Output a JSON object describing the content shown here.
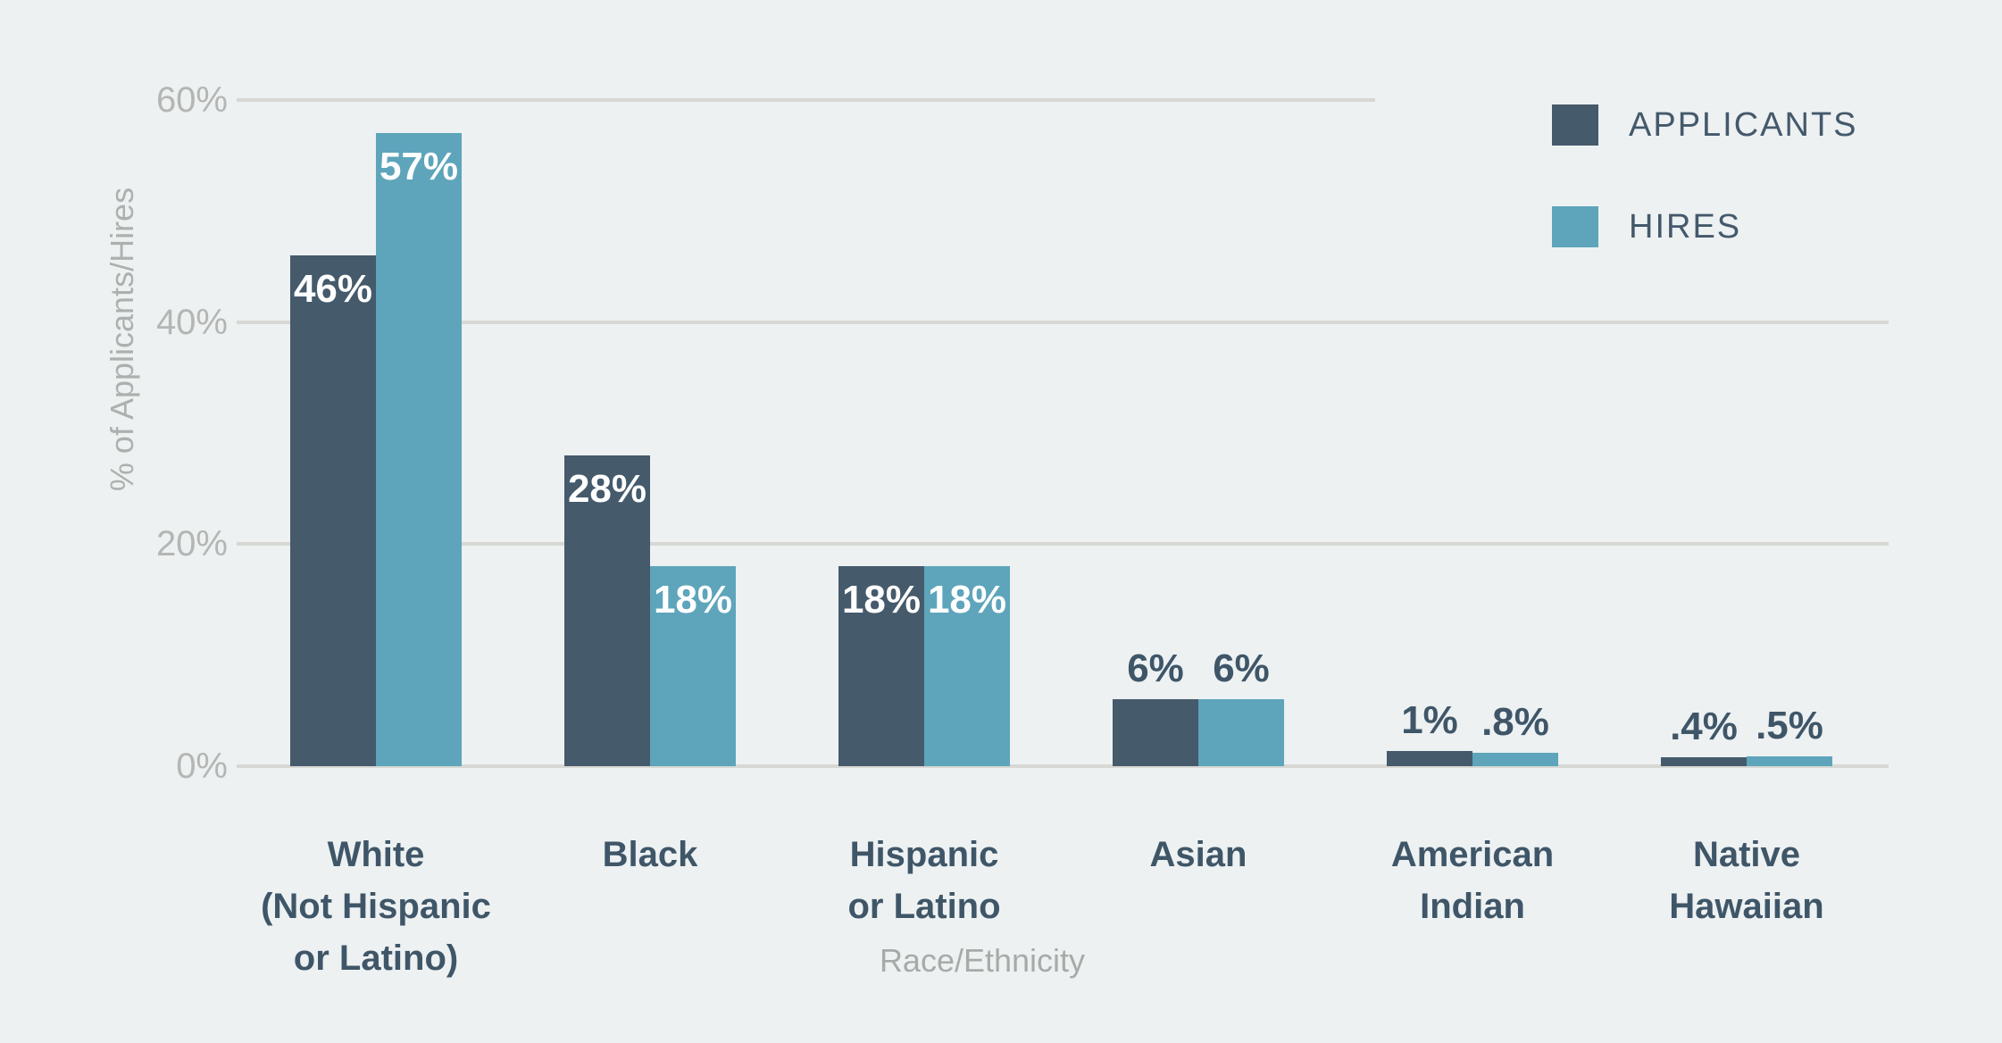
{
  "chart_data": {
    "type": "bar",
    "title": "",
    "xlabel": "Race/Ethnicity",
    "ylabel": "% of Applicants/Hires",
    "ylim": [
      0,
      60
    ],
    "grid": true,
    "legend_position": "top-right",
    "categories": [
      {
        "lines": [
          "White",
          "(Not Hispanic",
          "or Latino)"
        ]
      },
      {
        "lines": [
          "Black"
        ]
      },
      {
        "lines": [
          "Hispanic",
          "or Latino"
        ]
      },
      {
        "lines": [
          "Asian"
        ]
      },
      {
        "lines": [
          "American",
          "Indian"
        ]
      },
      {
        "lines": [
          "Native",
          "Hawaiian"
        ]
      }
    ],
    "y_ticks": [
      {
        "value": 0,
        "label": "0%"
      },
      {
        "value": 20,
        "label": "20%"
      },
      {
        "value": 40,
        "label": "40%"
      },
      {
        "value": 60,
        "label": "60%"
      }
    ],
    "series": [
      {
        "name": "APPLICANTS",
        "color": "#455A6B",
        "values": [
          46,
          28,
          18,
          6,
          1,
          0.4
        ],
        "value_labels": [
          "46%",
          "28%",
          "18%",
          "6%",
          "1%",
          ".4%"
        ]
      },
      {
        "name": "HIRES",
        "color": "#5EA5BB",
        "values": [
          57,
          18,
          18,
          6,
          0.8,
          0.5
        ],
        "value_labels": [
          "57%",
          "18%",
          "18%",
          "6%",
          ".8%",
          ".5%"
        ]
      }
    ]
  },
  "colors": {
    "background": "#EDF1F2",
    "gridline": "#D7D8D4",
    "tick_label": "#B3B6B3",
    "axis_title": "#A7ABA8",
    "category_label": "#3F5668",
    "value_label_inside": "#FFFFFF"
  }
}
